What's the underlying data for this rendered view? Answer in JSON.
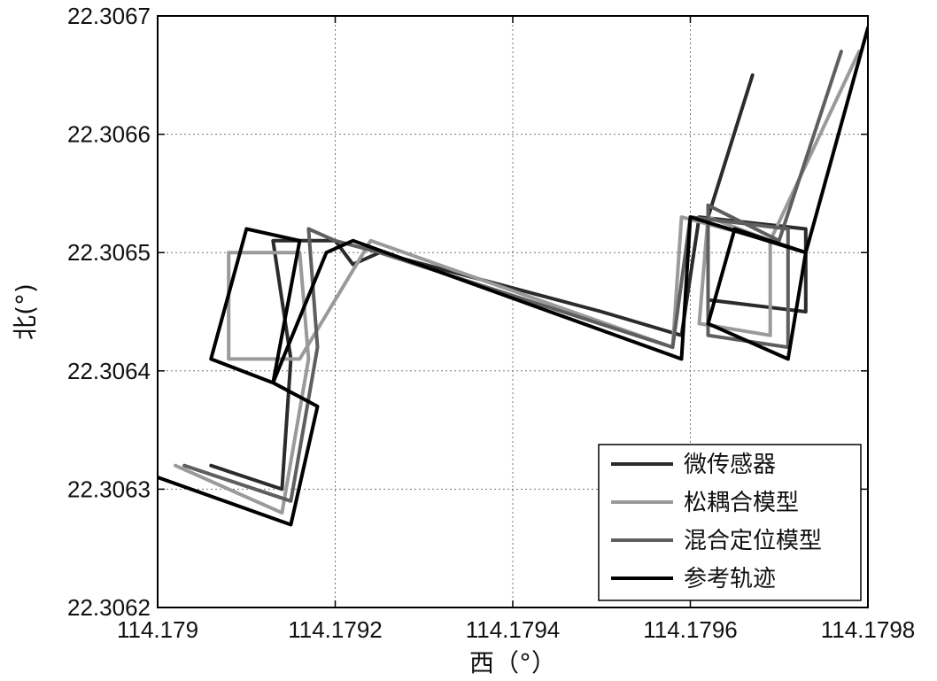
{
  "chart_data": {
    "type": "line",
    "xlabel": "西（°）",
    "ylabel": "北(°)",
    "xlim": [
      114.179,
      114.1798
    ],
    "ylim": [
      22.3062,
      22.3067
    ],
    "x_ticks": [
      "114.179",
      "114.1792",
      "114.1794",
      "114.1796",
      "114.1798"
    ],
    "y_ticks": [
      "22.3062",
      "22.3063",
      "22.3064",
      "22.3065",
      "22.3066",
      "22.3067"
    ],
    "grid": true,
    "legend_position": "bottom-right",
    "series": [
      {
        "name": "微传感器",
        "color": "#2b2b2b",
        "points": [
          [
            114.17906,
            22.30632
          ],
          [
            114.17914,
            22.3063
          ],
          [
            114.17915,
            22.30641
          ],
          [
            114.17913,
            22.30651
          ],
          [
            114.1792,
            22.30651
          ],
          [
            114.17922,
            22.30649
          ],
          [
            114.17925,
            22.3065
          ],
          [
            114.1795,
            22.30645
          ],
          [
            114.17959,
            22.30643
          ],
          [
            114.17961,
            22.30653
          ],
          [
            114.17973,
            22.30652
          ],
          [
            114.17973,
            22.30645
          ],
          [
            114.17962,
            22.30646
          ],
          [
            114.17962,
            22.30653
          ],
          [
            114.17967,
            22.30665
          ]
        ]
      },
      {
        "name": "松耦合模型",
        "color": "#9a9a9a",
        "points": [
          [
            114.17902,
            22.30632
          ],
          [
            114.17914,
            22.30628
          ],
          [
            114.17917,
            22.30641
          ],
          [
            114.17916,
            22.3065
          ],
          [
            114.17908,
            22.3065
          ],
          [
            114.17908,
            22.30641
          ],
          [
            114.17916,
            22.30641
          ],
          [
            114.17924,
            22.30651
          ],
          [
            114.17958,
            22.30642
          ],
          [
            114.17959,
            22.30653
          ],
          [
            114.17969,
            22.30651
          ],
          [
            114.17969,
            22.30643
          ],
          [
            114.17961,
            22.30644
          ],
          [
            114.17962,
            22.30653
          ],
          [
            114.17969,
            22.30651
          ],
          [
            114.17979,
            22.30667
          ]
        ]
      },
      {
        "name": "混合定位模型",
        "color": "#5e5e5e",
        "points": [
          [
            114.17903,
            22.30632
          ],
          [
            114.17915,
            22.30629
          ],
          [
            114.17918,
            22.30642
          ],
          [
            114.17917,
            22.30652
          ],
          [
            114.1792,
            22.30651
          ],
          [
            114.17925,
            22.3065
          ],
          [
            114.17958,
            22.30642
          ],
          [
            114.1796,
            22.30653
          ],
          [
            114.17971,
            22.30652
          ],
          [
            114.17971,
            22.30642
          ],
          [
            114.17962,
            22.30643
          ],
          [
            114.17962,
            22.30654
          ],
          [
            114.1797,
            22.30651
          ],
          [
            114.17977,
            22.30667
          ]
        ]
      },
      {
        "name": "参考轨迹",
        "color": "#000000",
        "points": [
          [
            114.179,
            22.30631
          ],
          [
            114.17915,
            22.30627
          ],
          [
            114.17918,
            22.30637
          ],
          [
            114.17913,
            22.30639
          ],
          [
            114.17906,
            22.30641
          ],
          [
            114.1791,
            22.30652
          ],
          [
            114.17916,
            22.30651
          ],
          [
            114.17913,
            22.30639
          ],
          [
            114.17919,
            22.3065
          ],
          [
            114.17922,
            22.30651
          ],
          [
            114.17959,
            22.30641
          ],
          [
            114.1796,
            22.30653
          ],
          [
            114.17973,
            22.3065
          ],
          [
            114.17971,
            22.30641
          ],
          [
            114.17962,
            22.30644
          ],
          [
            114.17965,
            22.30652
          ],
          [
            114.17973,
            22.3065
          ],
          [
            114.1798,
            22.30669
          ]
        ]
      }
    ]
  }
}
